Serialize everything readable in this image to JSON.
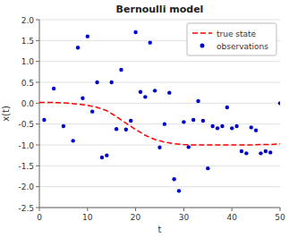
{
  "chart_data": {
    "type": "line",
    "title": "Bernoulli model",
    "x_label": "t",
    "y_label": "x(t)",
    "xlim": [
      0,
      50
    ],
    "ylim": [
      -2.5,
      2.0
    ],
    "xticks": [
      0,
      10,
      20,
      30,
      40,
      50
    ],
    "yticks": [
      -2.5,
      {
        "value": -2.0,
        "label": "-2.0"
      },
      -1.5,
      {
        "value": -1.0,
        "label": "-1.0"
      },
      -0.5,
      {
        "value": 0.0,
        "label": "0.0"
      },
      0.5,
      {
        "value": 1.0,
        "label": "1.0"
      },
      1.5,
      {
        "value": 2.0,
        "label": "2.0"
      }
    ],
    "grid": true,
    "legend": "upper right",
    "series": [
      {
        "name": "true state",
        "type": "line",
        "color": "#FF0000",
        "line_style": "dashed",
        "x": [
          0,
          2,
          4,
          6,
          8,
          10,
          12,
          14,
          16,
          18,
          20,
          22,
          24,
          26,
          28,
          30,
          32,
          34,
          36,
          38,
          40,
          42,
          44,
          46,
          48,
          50
        ],
        "values": [
          0.02,
          0.02,
          0.01,
          0.0,
          -0.02,
          -0.05,
          -0.1,
          -0.18,
          -0.32,
          -0.48,
          -0.63,
          -0.77,
          -0.87,
          -0.93,
          -0.97,
          -0.99,
          -1.0,
          -1.0,
          -1.0,
          -1.0,
          -1.0,
          -1.0,
          -1.0,
          -0.99,
          -0.99,
          -0.97
        ]
      },
      {
        "name": "observations",
        "type": "scatter",
        "color": "#0000CC",
        "marker": "dot",
        "x": [
          1,
          3,
          5,
          7,
          8,
          9,
          10,
          11,
          12,
          13,
          14,
          15,
          16,
          17,
          18,
          19,
          20,
          21,
          22,
          23,
          24,
          25,
          26,
          27,
          28,
          29,
          30,
          31,
          32,
          33,
          34,
          35,
          36,
          37,
          38,
          39,
          40,
          41,
          42,
          43,
          44,
          45,
          46,
          47,
          48,
          50
        ],
        "values": [
          -0.4,
          0.35,
          -0.55,
          -0.9,
          1.33,
          0.12,
          1.6,
          -0.2,
          0.5,
          -1.3,
          -1.25,
          0.5,
          -0.62,
          0.8,
          -0.63,
          -0.42,
          1.7,
          0.27,
          0.15,
          1.45,
          0.3,
          -1.06,
          -0.5,
          0.25,
          -1.82,
          -2.1,
          -0.45,
          -1.05,
          -0.4,
          0.05,
          -0.42,
          -1.56,
          -0.55,
          -0.6,
          -0.55,
          -0.1,
          -0.6,
          -0.55,
          -1.15,
          -1.2,
          -0.58,
          -0.65,
          -1.2,
          -1.15,
          -1.18,
          0.0
        ]
      }
    ]
  }
}
